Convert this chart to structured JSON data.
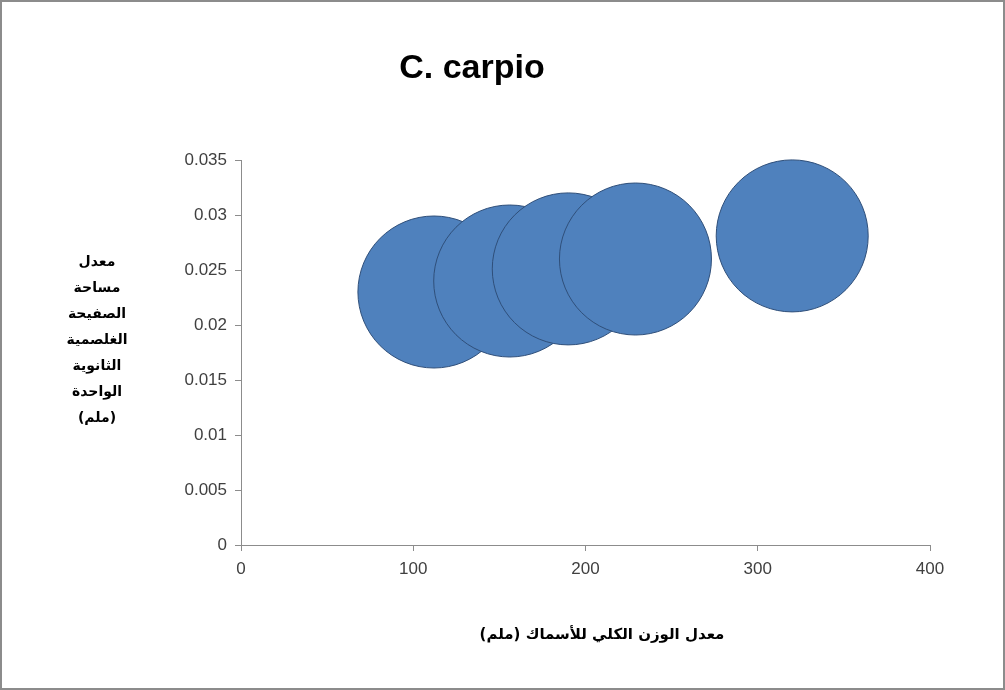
{
  "chart_data": {
    "type": "bubble",
    "title": "C. carpio",
    "xlabel": "معدل الوزن الكلي للأسماك (ملم)",
    "ylabel": "معدل مساحة الصفيحة الغلصمية الثانوية الواحدة (ملم)",
    "x": [
      112,
      156,
      190,
      229,
      320
    ],
    "values": [
      0.023,
      0.024,
      0.0251,
      0.026,
      0.0281
    ],
    "sizes": [
      1,
      1,
      1,
      1,
      1
    ],
    "color": "#4f81bd",
    "xlim": [
      0,
      400
    ],
    "xticks": [
      0,
      100,
      200,
      300,
      400
    ],
    "ylim": [
      0,
      0.035
    ],
    "yticks": [
      0,
      0.005,
      0.01,
      0.015,
      0.02,
      0.025,
      0.03,
      0.035
    ],
    "grid": false,
    "legend": false
  }
}
